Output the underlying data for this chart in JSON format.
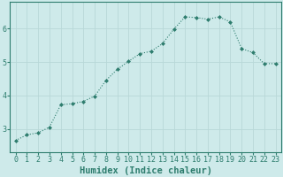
{
  "x": [
    0,
    1,
    2,
    3,
    4,
    5,
    6,
    7,
    8,
    9,
    10,
    11,
    12,
    13,
    14,
    15,
    16,
    17,
    18,
    19,
    20,
    21,
    22,
    23
  ],
  "y": [
    2.65,
    2.82,
    2.88,
    3.05,
    3.72,
    3.75,
    3.82,
    3.98,
    4.45,
    4.78,
    5.02,
    5.25,
    5.32,
    5.55,
    5.98,
    6.35,
    6.33,
    6.28,
    6.35,
    6.2,
    5.4,
    5.28,
    4.95,
    4.95
  ],
  "line_color": "#2e7d6e",
  "marker": "D",
  "marker_size": 2.0,
  "bg_color": "#ceeaea",
  "grid_color": "#b8d8d8",
  "xlabel": "Humidex (Indice chaleur)",
  "xlabel_fontsize": 7.5,
  "tick_fontsize": 6,
  "ylim": [
    2.3,
    6.8
  ],
  "xlim": [
    -0.5,
    23.5
  ],
  "yticks": [
    3,
    4,
    5,
    6
  ],
  "xticks": [
    0,
    1,
    2,
    3,
    4,
    5,
    6,
    7,
    8,
    9,
    10,
    11,
    12,
    13,
    14,
    15,
    16,
    17,
    18,
    19,
    20,
    21,
    22,
    23
  ]
}
